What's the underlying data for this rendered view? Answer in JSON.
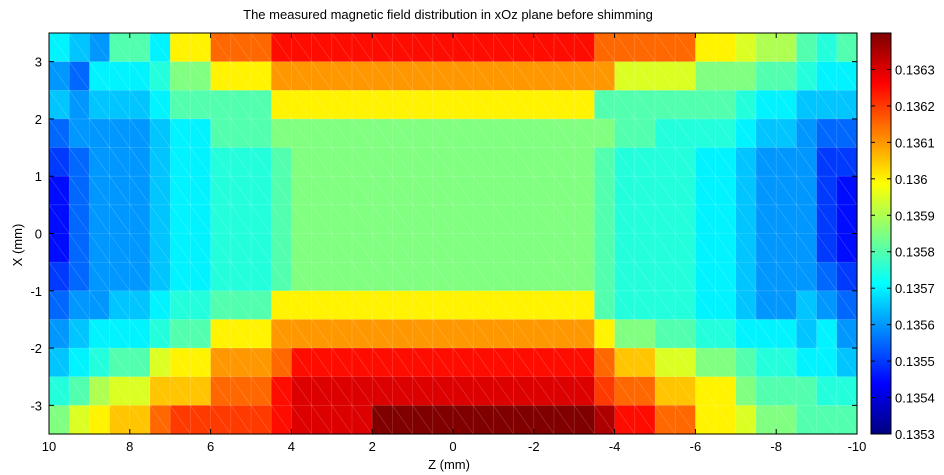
{
  "chart_data": {
    "type": "heatmap",
    "title": "The measured magnetic field distribution in xOz plane before shimming",
    "xlabel": "Z (mm)",
    "ylabel": "X (mm)",
    "x_reversed": true,
    "xlim": [
      10,
      -10
    ],
    "ylim": [
      -3.5,
      3.5
    ],
    "x_ticks": [
      10,
      8,
      6,
      4,
      2,
      0,
      -2,
      -4,
      -6,
      -8,
      -10
    ],
    "x_tick_labels": [
      "10",
      "8",
      "6",
      "4",
      "2",
      "0",
      "-2",
      "-4",
      "-6",
      "-8",
      "-10"
    ],
    "y_ticks": [
      3,
      2,
      1,
      0,
      -1,
      -2,
      -3
    ],
    "y_tick_labels": [
      "3",
      "2",
      "1",
      "0",
      "-1",
      "-2",
      "-3"
    ],
    "colorbar": {
      "min": 0.1353,
      "max": 0.1364,
      "ticks": [
        0.1363,
        0.1362,
        0.1361,
        0.136,
        0.1359,
        0.1358,
        0.1357,
        0.1356,
        0.1355,
        0.1354,
        0.1353
      ],
      "tick_labels": [
        "0.1363",
        "0.1362",
        "0.1361",
        "0.136",
        "0.1359",
        "0.1358",
        "0.1357",
        "0.1356",
        "0.1355",
        "0.1354",
        "0.1353"
      ],
      "colormap": "jet"
    },
    "grid": false,
    "z_col_edges": [
      10.0,
      9.5,
      9.0,
      8.5,
      7.5,
      7.0,
      6.0,
      4.5,
      4.0,
      2.0,
      -3.5,
      -4.0,
      -5.0,
      -6.0,
      -7.0,
      -7.5,
      -8.5,
      -9.0,
      -9.5,
      -10.0
    ],
    "x_row_edges": [
      3.5,
      3.0,
      2.5,
      2.0,
      1.5,
      1.0,
      0.5,
      0.0,
      -0.5,
      -1.0,
      -1.5,
      -2.0,
      -2.5,
      -3.0,
      -3.5
    ],
    "values": [
      [
        0.1357,
        0.13565,
        0.1356,
        0.1358,
        0.1357,
        0.136,
        0.13615,
        0.13625,
        0.13625,
        0.13625,
        0.13615,
        0.13615,
        0.13615,
        0.136,
        0.13595,
        0.1359,
        0.1358,
        0.13575,
        0.1358
      ],
      [
        0.1356,
        0.13555,
        0.1357,
        0.1357,
        0.13575,
        0.13585,
        0.136,
        0.1361,
        0.1361,
        0.1361,
        0.1361,
        0.13595,
        0.13595,
        0.13585,
        0.13585,
        0.1358,
        0.13575,
        0.1357,
        0.1357
      ],
      [
        0.13565,
        0.1356,
        0.13565,
        0.13565,
        0.1357,
        0.1358,
        0.1358,
        0.136,
        0.136,
        0.136,
        0.1358,
        0.1358,
        0.1358,
        0.1358,
        0.13575,
        0.1357,
        0.13565,
        0.13565,
        0.13565
      ],
      [
        0.13555,
        0.1356,
        0.1356,
        0.1356,
        0.13565,
        0.1357,
        0.1358,
        0.13585,
        0.13585,
        0.13585,
        0.13585,
        0.1358,
        0.13575,
        0.13575,
        0.1357,
        0.13565,
        0.1356,
        0.13555,
        0.13555
      ],
      [
        0.1355,
        0.13555,
        0.1356,
        0.1356,
        0.13565,
        0.1357,
        0.13575,
        0.1358,
        0.13585,
        0.13585,
        0.1358,
        0.13575,
        0.13575,
        0.1357,
        0.13565,
        0.1356,
        0.1356,
        0.1355,
        0.1355
      ],
      [
        0.13545,
        0.13555,
        0.1356,
        0.1356,
        0.13565,
        0.1357,
        0.13575,
        0.1358,
        0.13585,
        0.13585,
        0.1358,
        0.13575,
        0.13575,
        0.1357,
        0.13565,
        0.1356,
        0.1356,
        0.1355,
        0.13545
      ],
      [
        0.13545,
        0.13555,
        0.1356,
        0.1356,
        0.13565,
        0.1357,
        0.13575,
        0.1358,
        0.13585,
        0.13585,
        0.1358,
        0.13575,
        0.13575,
        0.1357,
        0.13565,
        0.1356,
        0.1356,
        0.1355,
        0.13545
      ],
      [
        0.13545,
        0.13555,
        0.1356,
        0.1356,
        0.13565,
        0.1357,
        0.13575,
        0.1358,
        0.13585,
        0.13585,
        0.1358,
        0.13575,
        0.13575,
        0.1357,
        0.13565,
        0.1356,
        0.1356,
        0.1355,
        0.13545
      ],
      [
        0.1355,
        0.13555,
        0.1356,
        0.1356,
        0.13565,
        0.1357,
        0.13575,
        0.1358,
        0.13585,
        0.13585,
        0.1358,
        0.13575,
        0.13575,
        0.1357,
        0.13565,
        0.1356,
        0.1356,
        0.13555,
        0.1355
      ],
      [
        0.13555,
        0.1356,
        0.1356,
        0.13565,
        0.1357,
        0.13575,
        0.1358,
        0.136,
        0.136,
        0.136,
        0.1358,
        0.13575,
        0.13575,
        0.1357,
        0.13565,
        0.1356,
        0.13565,
        0.1356,
        0.13555
      ],
      [
        0.1356,
        0.13565,
        0.1357,
        0.1357,
        0.13575,
        0.1358,
        0.136,
        0.1361,
        0.1361,
        0.1361,
        0.136,
        0.13585,
        0.1358,
        0.13575,
        0.1357,
        0.1357,
        0.13565,
        0.1357,
        0.1356
      ],
      [
        0.13565,
        0.1357,
        0.13575,
        0.1358,
        0.13595,
        0.136,
        0.1361,
        0.13615,
        0.13625,
        0.13625,
        0.13615,
        0.13605,
        0.13595,
        0.13585,
        0.1358,
        0.13575,
        0.1357,
        0.1357,
        0.13565
      ],
      [
        0.13575,
        0.1358,
        0.1359,
        0.13595,
        0.13605,
        0.13605,
        0.13615,
        0.13625,
        0.1363,
        0.1363,
        0.1362,
        0.13615,
        0.13605,
        0.136,
        0.13585,
        0.1358,
        0.1358,
        0.13575,
        0.13575
      ],
      [
        0.13585,
        0.13595,
        0.136,
        0.13605,
        0.13615,
        0.1362,
        0.1362,
        0.13625,
        0.1363,
        0.1364,
        0.13635,
        0.13625,
        0.13615,
        0.136,
        0.13595,
        0.13585,
        0.1358,
        0.1358,
        0.1358
      ]
    ]
  }
}
